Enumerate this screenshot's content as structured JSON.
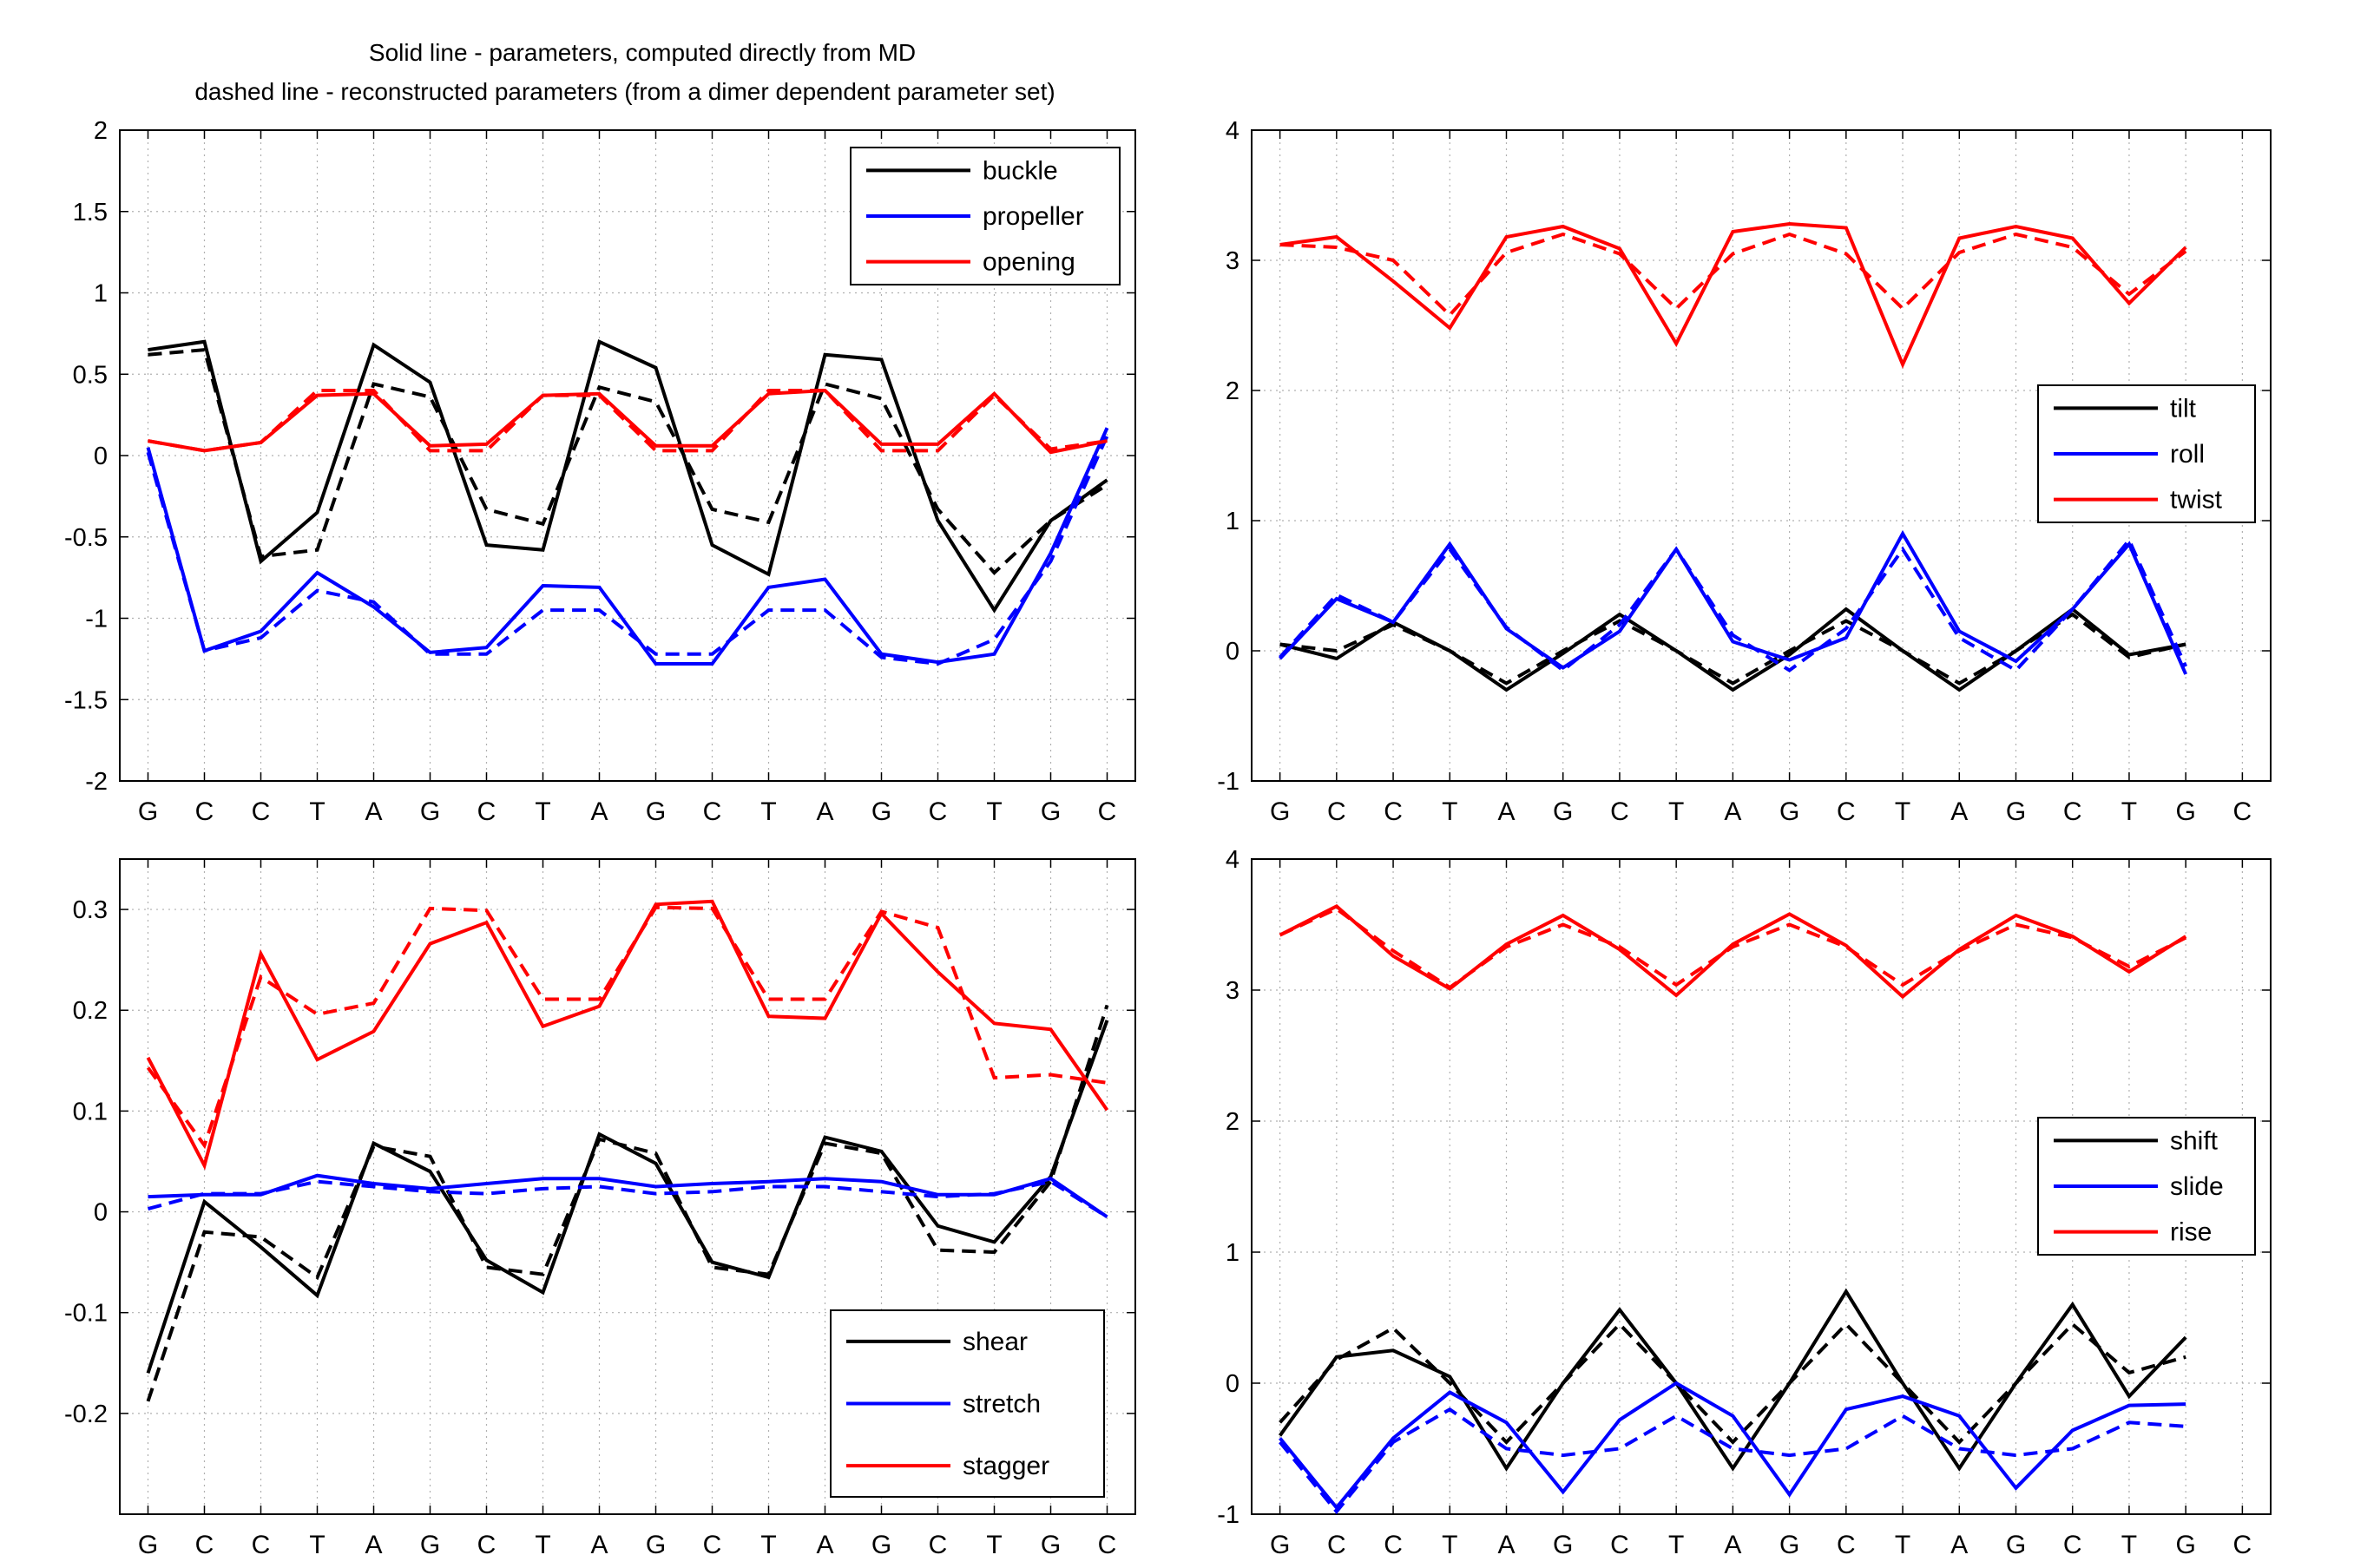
{
  "figure_title": [
    "Solid line - parameters, computed directly from MD",
    "dashed line - reconstructed parameters (from a dimer dependent parameter set)"
  ],
  "chart_data": [
    {
      "id": "base-pair",
      "type": "line",
      "title": "",
      "xlabel": "",
      "ylabel": "",
      "categories": [
        "G",
        "C",
        "C",
        "T",
        "A",
        "G",
        "C",
        "T",
        "A",
        "G",
        "C",
        "T",
        "A",
        "G",
        "C",
        "T",
        "G",
        "C"
      ],
      "ylim": [
        -2,
        2
      ],
      "yticks": [
        -2,
        -1.5,
        -1,
        -0.5,
        0,
        0.5,
        1,
        1.5,
        2
      ],
      "grid": true,
      "legend_position": "top-right",
      "x": [
        1,
        2,
        3,
        4,
        5,
        6,
        7,
        8,
        9,
        10,
        11,
        12,
        13,
        14,
        15,
        16,
        17,
        18
      ],
      "series": [
        {
          "name": "buckle",
          "color": "#000000",
          "style": "solid",
          "values": [
            0.65,
            0.7,
            -0.65,
            -0.35,
            0.68,
            0.45,
            -0.55,
            -0.58,
            0.7,
            0.54,
            -0.55,
            -0.73,
            0.62,
            0.59,
            -0.4,
            -0.95,
            -0.4,
            -0.15
          ]
        },
        {
          "name": "buckle",
          "color": "#000000",
          "style": "dashed",
          "values": [
            0.62,
            0.65,
            -0.62,
            -0.58,
            0.44,
            0.36,
            -0.33,
            -0.42,
            0.42,
            0.33,
            -0.33,
            -0.41,
            0.44,
            0.35,
            -0.33,
            -0.72,
            -0.4,
            -0.18
          ]
        },
        {
          "name": "propeller",
          "color": "#0000ff",
          "style": "solid",
          "values": [
            0.05,
            -1.2,
            -1.08,
            -0.72,
            -0.93,
            -1.21,
            -1.18,
            -0.8,
            -0.81,
            -1.28,
            -1.28,
            -0.81,
            -0.76,
            -1.22,
            -1.27,
            -1.22,
            -0.6,
            0.17
          ]
        },
        {
          "name": "propeller",
          "color": "#0000ff",
          "style": "dashed",
          "values": [
            0.02,
            -1.2,
            -1.12,
            -0.83,
            -0.9,
            -1.22,
            -1.22,
            -0.95,
            -0.95,
            -1.22,
            -1.22,
            -0.95,
            -0.95,
            -1.24,
            -1.28,
            -1.13,
            -0.65,
            0.12
          ]
        },
        {
          "name": "opening",
          "color": "#ff0000",
          "style": "solid",
          "values": [
            0.09,
            0.03,
            0.08,
            0.37,
            0.38,
            0.06,
            0.07,
            0.37,
            0.38,
            0.06,
            0.06,
            0.38,
            0.4,
            0.07,
            0.07,
            0.38,
            0.02,
            0.09
          ]
        },
        {
          "name": "opening",
          "color": "#ff0000",
          "style": "dashed",
          "values": [
            0.09,
            0.03,
            0.08,
            0.4,
            0.4,
            0.03,
            0.03,
            0.37,
            0.37,
            0.03,
            0.03,
            0.4,
            0.4,
            0.03,
            0.03,
            0.37,
            0.04,
            0.09
          ]
        }
      ]
    },
    {
      "id": "step-angular",
      "type": "line",
      "title": "",
      "xlabel": "",
      "ylabel": "",
      "categories": [
        "G",
        "C",
        "C",
        "T",
        "A",
        "G",
        "C",
        "T",
        "A",
        "G",
        "C",
        "T",
        "A",
        "G",
        "C",
        "T",
        "G",
        "C"
      ],
      "ylim": [
        -1,
        4
      ],
      "yticks": [
        -1,
        0,
        1,
        2,
        3,
        4
      ],
      "grid": true,
      "legend_position": "middle-right",
      "x": [
        1,
        2,
        3,
        4,
        5,
        6,
        7,
        8,
        9,
        10,
        11,
        12,
        13,
        14,
        15,
        16,
        17
      ],
      "series": [
        {
          "name": "tilt",
          "color": "#000000",
          "style": "solid",
          "values": [
            0.05,
            -0.06,
            0.22,
            0.0,
            -0.3,
            -0.02,
            0.28,
            0.0,
            -0.3,
            -0.03,
            0.32,
            0.0,
            -0.3,
            0.0,
            0.32,
            -0.03,
            0.05
          ]
        },
        {
          "name": "tilt",
          "color": "#000000",
          "style": "dashed",
          "values": [
            0.05,
            0.0,
            0.2,
            0.0,
            -0.25,
            0.0,
            0.23,
            0.0,
            -0.25,
            0.0,
            0.23,
            0.0,
            -0.25,
            0.0,
            0.28,
            -0.05,
            0.05
          ]
        },
        {
          "name": "roll",
          "color": "#0000ff",
          "style": "solid",
          "values": [
            -0.06,
            0.4,
            0.22,
            0.82,
            0.17,
            -0.13,
            0.15,
            0.78,
            0.07,
            -0.07,
            0.1,
            0.9,
            0.15,
            -0.08,
            0.32,
            0.82,
            -0.18
          ]
        },
        {
          "name": "roll",
          "color": "#0000ff",
          "style": "dashed",
          "values": [
            -0.05,
            0.43,
            0.22,
            0.78,
            0.18,
            -0.15,
            0.2,
            0.78,
            0.12,
            -0.15,
            0.17,
            0.78,
            0.1,
            -0.15,
            0.32,
            0.85,
            -0.12
          ]
        },
        {
          "name": "twist",
          "color": "#ff0000",
          "style": "solid",
          "values": [
            3.12,
            3.18,
            2.84,
            2.48,
            3.18,
            3.26,
            3.09,
            2.36,
            3.22,
            3.28,
            3.25,
            2.2,
            3.17,
            3.26,
            3.17,
            2.67,
            3.1
          ]
        },
        {
          "name": "twist",
          "color": "#ff0000",
          "style": "dashed",
          "values": [
            3.12,
            3.1,
            3.0,
            2.58,
            3.06,
            3.2,
            3.05,
            2.63,
            3.05,
            3.2,
            3.05,
            2.63,
            3.06,
            3.2,
            3.1,
            2.74,
            3.07
          ]
        }
      ]
    },
    {
      "id": "base-pair-translational",
      "type": "line",
      "title": "",
      "xlabel": "",
      "ylabel": "",
      "categories": [
        "G",
        "C",
        "C",
        "T",
        "A",
        "G",
        "C",
        "T",
        "A",
        "G",
        "C",
        "T",
        "A",
        "G",
        "C",
        "T",
        "G",
        "C"
      ],
      "ylim": [
        -0.3,
        0.35
      ],
      "yticks": [
        -0.2,
        -0.1,
        0,
        0.1,
        0.2,
        0.3
      ],
      "ytick_labels": [
        "-0.2",
        "-0.1",
        "0",
        "0.1",
        "0.2",
        "0.3"
      ],
      "grid": true,
      "legend_position": "bottom-right",
      "x": [
        1,
        2,
        3,
        4,
        5,
        6,
        7,
        8,
        9,
        10,
        11,
        12,
        13,
        14,
        15,
        16,
        17,
        18
      ],
      "series": [
        {
          "name": "shear",
          "color": "#000000",
          "style": "solid",
          "values": [
            -0.16,
            0.01,
            -0.035,
            -0.083,
            0.068,
            0.04,
            -0.048,
            -0.08,
            0.077,
            0.048,
            -0.05,
            -0.065,
            0.074,
            0.06,
            -0.014,
            -0.03,
            0.035,
            0.19
          ]
        },
        {
          "name": "shear",
          "color": "#000000",
          "style": "dashed",
          "values": [
            -0.188,
            -0.02,
            -0.025,
            -0.065,
            0.065,
            0.055,
            -0.055,
            -0.062,
            0.072,
            0.058,
            -0.055,
            -0.062,
            0.068,
            0.058,
            -0.038,
            -0.04,
            0.03,
            0.205
          ]
        },
        {
          "name": "stretch",
          "color": "#0000ff",
          "style": "solid",
          "values": [
            0.015,
            0.017,
            0.017,
            0.036,
            0.028,
            0.023,
            0.028,
            0.033,
            0.033,
            0.025,
            0.028,
            0.03,
            0.033,
            0.03,
            0.017,
            0.017,
            0.033,
            -0.005
          ]
        },
        {
          "name": "stretch",
          "color": "#0000ff",
          "style": "dashed",
          "values": [
            0.003,
            0.018,
            0.018,
            0.03,
            0.025,
            0.02,
            0.018,
            0.023,
            0.025,
            0.018,
            0.02,
            0.025,
            0.025,
            0.02,
            0.015,
            0.018,
            0.03,
            -0.005
          ]
        },
        {
          "name": "stagger",
          "color": "#ff0000",
          "style": "solid",
          "values": [
            0.153,
            0.046,
            0.256,
            0.151,
            0.179,
            0.266,
            0.287,
            0.184,
            0.204,
            0.305,
            0.308,
            0.194,
            0.192,
            0.296,
            0.238,
            0.187,
            0.181,
            0.101
          ]
        },
        {
          "name": "stagger",
          "color": "#ff0000",
          "style": "dashed",
          "values": [
            0.143,
            0.066,
            0.233,
            0.196,
            0.207,
            0.301,
            0.299,
            0.211,
            0.211,
            0.302,
            0.301,
            0.211,
            0.211,
            0.298,
            0.282,
            0.133,
            0.136,
            0.128
          ]
        }
      ]
    },
    {
      "id": "step-translational",
      "type": "line",
      "title": "",
      "xlabel": "",
      "ylabel": "",
      "categories": [
        "G",
        "C",
        "C",
        "T",
        "A",
        "G",
        "C",
        "T",
        "A",
        "G",
        "C",
        "T",
        "A",
        "G",
        "C",
        "T",
        "G",
        "C"
      ],
      "ylim": [
        -1,
        4
      ],
      "yticks": [
        -1,
        0,
        1,
        2,
        3,
        4
      ],
      "grid": true,
      "legend_position": "middle-right",
      "x": [
        1,
        2,
        3,
        4,
        5,
        6,
        7,
        8,
        9,
        10,
        11,
        12,
        13,
        14,
        15,
        16,
        17
      ],
      "series": [
        {
          "name": "shift",
          "color": "#000000",
          "style": "solid",
          "values": [
            -0.4,
            0.2,
            0.25,
            0.05,
            -0.65,
            0.0,
            0.56,
            0.0,
            -0.65,
            0.0,
            0.7,
            0.0,
            -0.65,
            0.0,
            0.6,
            -0.1,
            0.35
          ]
        },
        {
          "name": "shift",
          "color": "#000000",
          "style": "dashed",
          "values": [
            -0.3,
            0.18,
            0.42,
            0.0,
            -0.45,
            0.0,
            0.45,
            0.0,
            -0.45,
            0.0,
            0.45,
            0.0,
            -0.45,
            0.0,
            0.45,
            0.08,
            0.2
          ]
        },
        {
          "name": "slide",
          "color": "#0000ff",
          "style": "solid",
          "values": [
            -0.42,
            -0.95,
            -0.42,
            -0.07,
            -0.3,
            -0.83,
            -0.28,
            0.0,
            -0.25,
            -0.85,
            -0.2,
            -0.1,
            -0.25,
            -0.8,
            -0.36,
            -0.17,
            -0.16
          ]
        },
        {
          "name": "slide",
          "color": "#0000ff",
          "style": "dashed",
          "values": [
            -0.45,
            -0.98,
            -0.45,
            -0.2,
            -0.5,
            -0.55,
            -0.5,
            -0.25,
            -0.5,
            -0.55,
            -0.5,
            -0.25,
            -0.5,
            -0.55,
            -0.5,
            -0.3,
            -0.33
          ]
        },
        {
          "name": "rise",
          "color": "#ff0000",
          "style": "solid",
          "values": [
            3.42,
            3.64,
            3.26,
            3.01,
            3.35,
            3.57,
            3.31,
            2.96,
            3.35,
            3.58,
            3.34,
            2.95,
            3.31,
            3.57,
            3.41,
            3.14,
            3.41
          ]
        },
        {
          "name": "rise",
          "color": "#ff0000",
          "style": "dashed",
          "values": [
            3.42,
            3.62,
            3.3,
            3.02,
            3.33,
            3.5,
            3.33,
            3.04,
            3.33,
            3.5,
            3.33,
            3.04,
            3.3,
            3.5,
            3.4,
            3.18,
            3.4
          ]
        }
      ]
    }
  ]
}
